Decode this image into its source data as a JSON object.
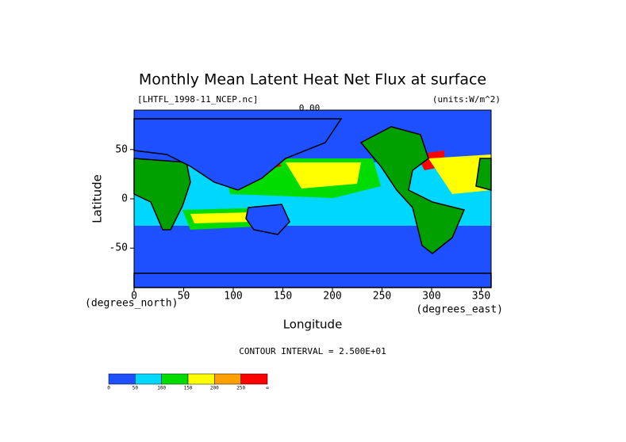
{
  "chart_data": {
    "type": "contour-map",
    "title": "Monthly Mean Latent Heat Net Flux at surface",
    "subtitle": "[LHTFL_1998-11_NCEP.nc]",
    "units": "(units:W/m^2)",
    "x_label": "Longitude",
    "y_label": "Latitude",
    "x_units": "(degrees_east)",
    "y_units": "(degrees_north)",
    "annotations": [
      "0.00",
      "CONTOUR INTERVAL = 2.500E+01"
    ],
    "xlim": [
      0,
      360
    ],
    "ylim": [
      -90,
      90
    ],
    "xticks": [
      0,
      50,
      100,
      150,
      200,
      250,
      300,
      350
    ],
    "yticks": [
      -50,
      0,
      50
    ],
    "colorbar": {
      "colors": [
        "#1e50ff",
        "#00d7ff",
        "#00dc00",
        "#ffff00",
        "#ffa000",
        "#ff0000"
      ],
      "labels": [
        0,
        50,
        100,
        150,
        200,
        250,
        "∞"
      ]
    }
  }
}
